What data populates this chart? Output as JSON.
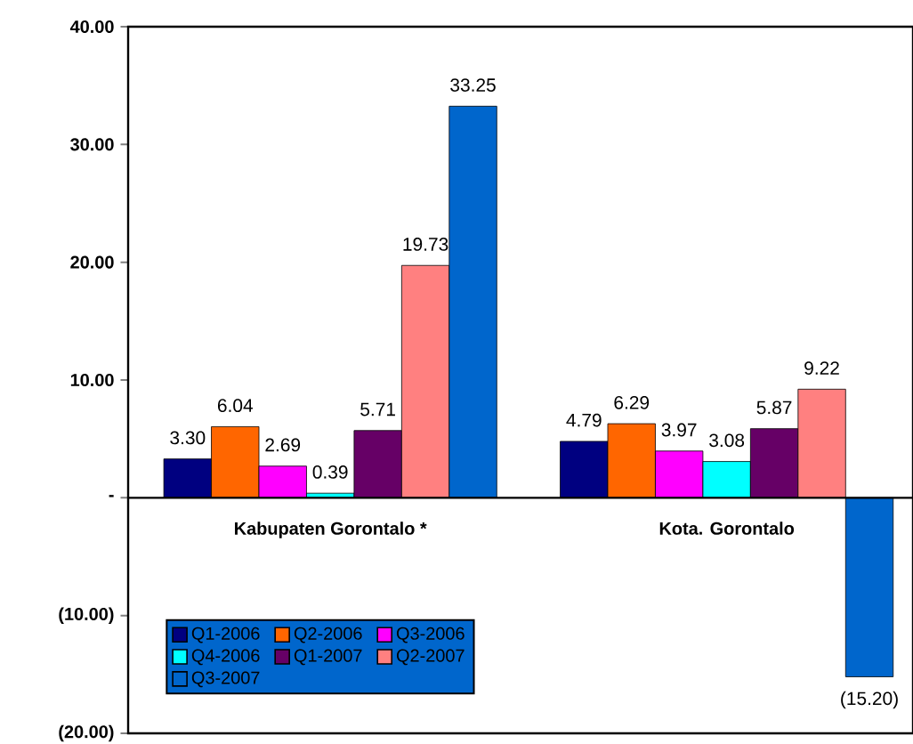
{
  "chart_data": {
    "type": "bar",
    "categories": [
      "Kabupaten Gorontalo *",
      "Kota. Gorontalo"
    ],
    "series": [
      {
        "name": "Q1-2006",
        "color": "#000080",
        "values": [
          3.3,
          4.79
        ],
        "value_labels": [
          "3.30",
          "4.79"
        ]
      },
      {
        "name": "Q2-2006",
        "color": "#ff6600",
        "values": [
          6.04,
          6.29
        ],
        "value_labels": [
          "6.04",
          "6.29"
        ]
      },
      {
        "name": "Q3-2006",
        "color": "#ff00ff",
        "values": [
          2.69,
          3.97
        ],
        "value_labels": [
          "2.69",
          "3.97"
        ]
      },
      {
        "name": "Q4-2006",
        "color": "#00ffff",
        "values": [
          0.39,
          3.08
        ],
        "value_labels": [
          "0.39",
          "3.08"
        ]
      },
      {
        "name": "Q1-2007",
        "color": "#660066",
        "values": [
          5.71,
          5.87
        ],
        "value_labels": [
          "5.71",
          "5.87"
        ]
      },
      {
        "name": "Q2-2007",
        "color": "#ff8080",
        "values": [
          19.73,
          9.22
        ],
        "value_labels": [
          "19.73",
          "9.22"
        ]
      },
      {
        "name": "Q3-2007",
        "color": "#0066cc",
        "values": [
          33.25,
          -15.2
        ],
        "value_labels": [
          "33.25",
          "(15.20)"
        ]
      }
    ],
    "ylim": [
      -20,
      40
    ],
    "yticks": [
      {
        "value": -20,
        "label": "(20.00)"
      },
      {
        "value": -10,
        "label": "(10.00)"
      },
      {
        "value": 0,
        "label": "-"
      },
      {
        "value": 10,
        "label": "10.00"
      },
      {
        "value": 20,
        "label": "20.00"
      },
      {
        "value": 30,
        "label": "30.00"
      },
      {
        "value": 40,
        "label": "40.00"
      }
    ],
    "legend": "bottom left",
    "grid": false
  }
}
